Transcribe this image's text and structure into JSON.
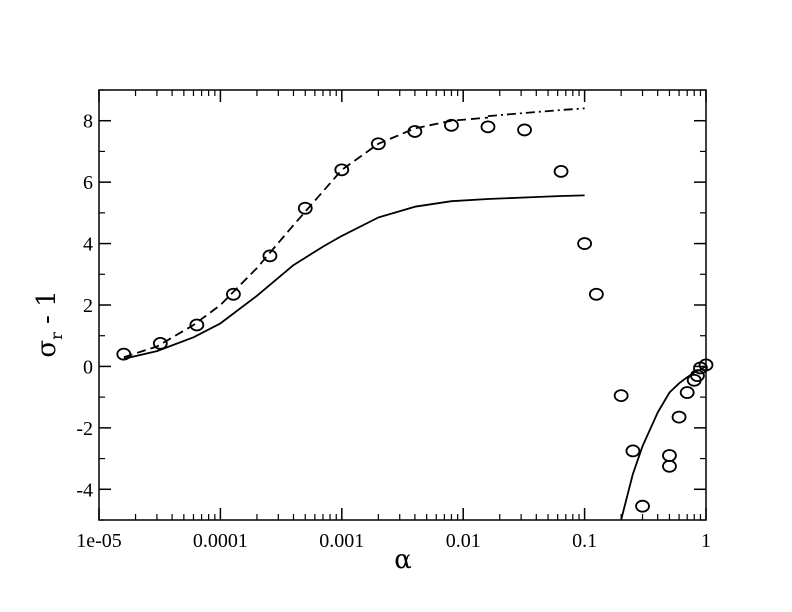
{
  "chart_data": {
    "type": "scatter",
    "title": "",
    "xlabel": "α",
    "ylabel_main": "σ",
    "ylabel_sub": "r",
    "ylabel_tail": " - 1",
    "x_scale": "log",
    "xlim": [
      1e-05,
      1
    ],
    "ylim": [
      -5,
      9
    ],
    "x_ticks": [
      1e-05,
      0.0001,
      0.001,
      0.01,
      0.1,
      1
    ],
    "x_tick_labels": [
      "1e-05",
      "0.0001",
      "0.001",
      "0.01",
      "0.1",
      "1"
    ],
    "y_ticks": [
      -4,
      -2,
      0,
      2,
      4,
      6,
      8
    ],
    "y_tick_labels": [
      "-4",
      "-2",
      "0",
      "2",
      "4",
      "6",
      "8"
    ],
    "grid": false,
    "series": [
      {
        "style": "circles",
        "x": [
          1.6e-05,
          3.2e-05,
          6.4e-05,
          0.000128,
          0.000256,
          0.0005,
          0.001,
          0.002,
          0.004,
          0.008,
          0.016,
          0.032,
          0.064,
          0.1,
          0.125,
          0.2,
          0.25,
          0.3,
          0.5,
          0.5,
          0.6,
          0.7,
          0.8,
          0.85,
          0.9,
          1.0
        ],
        "y": [
          0.4,
          0.75,
          1.35,
          2.35,
          3.6,
          5.15,
          6.4,
          7.25,
          7.65,
          7.85,
          7.8,
          7.7,
          6.35,
          4.0,
          2.35,
          -0.95,
          -2.75,
          -4.55,
          -2.9,
          -3.25,
          -1.65,
          -0.85,
          -0.45,
          -0.3,
          -0.05,
          0.05
        ]
      },
      {
        "style": "dashed",
        "x": [
          1.6e-05,
          3e-05,
          6e-05,
          0.0001,
          0.0002,
          0.0004,
          0.0007,
          0.001,
          0.002,
          0.004,
          0.008,
          0.016
        ],
        "y": [
          0.3,
          0.65,
          1.35,
          2.0,
          3.2,
          4.6,
          5.7,
          6.4,
          7.25,
          7.75,
          8.0,
          8.1
        ]
      },
      {
        "style": "dash-dot",
        "x": [
          0.016,
          0.032,
          0.064,
          0.1
        ],
        "y": [
          8.15,
          8.25,
          8.35,
          8.4
        ]
      },
      {
        "style": "solid",
        "x": [
          1.6e-05,
          3e-05,
          6e-05,
          0.0001,
          0.0002,
          0.0004,
          0.0007,
          0.001,
          0.002,
          0.004,
          0.008,
          0.016,
          0.032,
          0.064,
          0.1
        ],
        "y": [
          0.25,
          0.5,
          0.95,
          1.4,
          2.3,
          3.3,
          3.9,
          4.25,
          4.85,
          5.2,
          5.38,
          5.45,
          5.5,
          5.55,
          5.57
        ]
      },
      {
        "style": "solid",
        "x": [
          0.2,
          0.25,
          0.3,
          0.4,
          0.5,
          0.6,
          0.7,
          0.8,
          0.9,
          1.0
        ],
        "y": [
          -5.0,
          -3.5,
          -2.6,
          -1.5,
          -0.85,
          -0.55,
          -0.35,
          -0.2,
          -0.1,
          0.0
        ]
      }
    ]
  }
}
